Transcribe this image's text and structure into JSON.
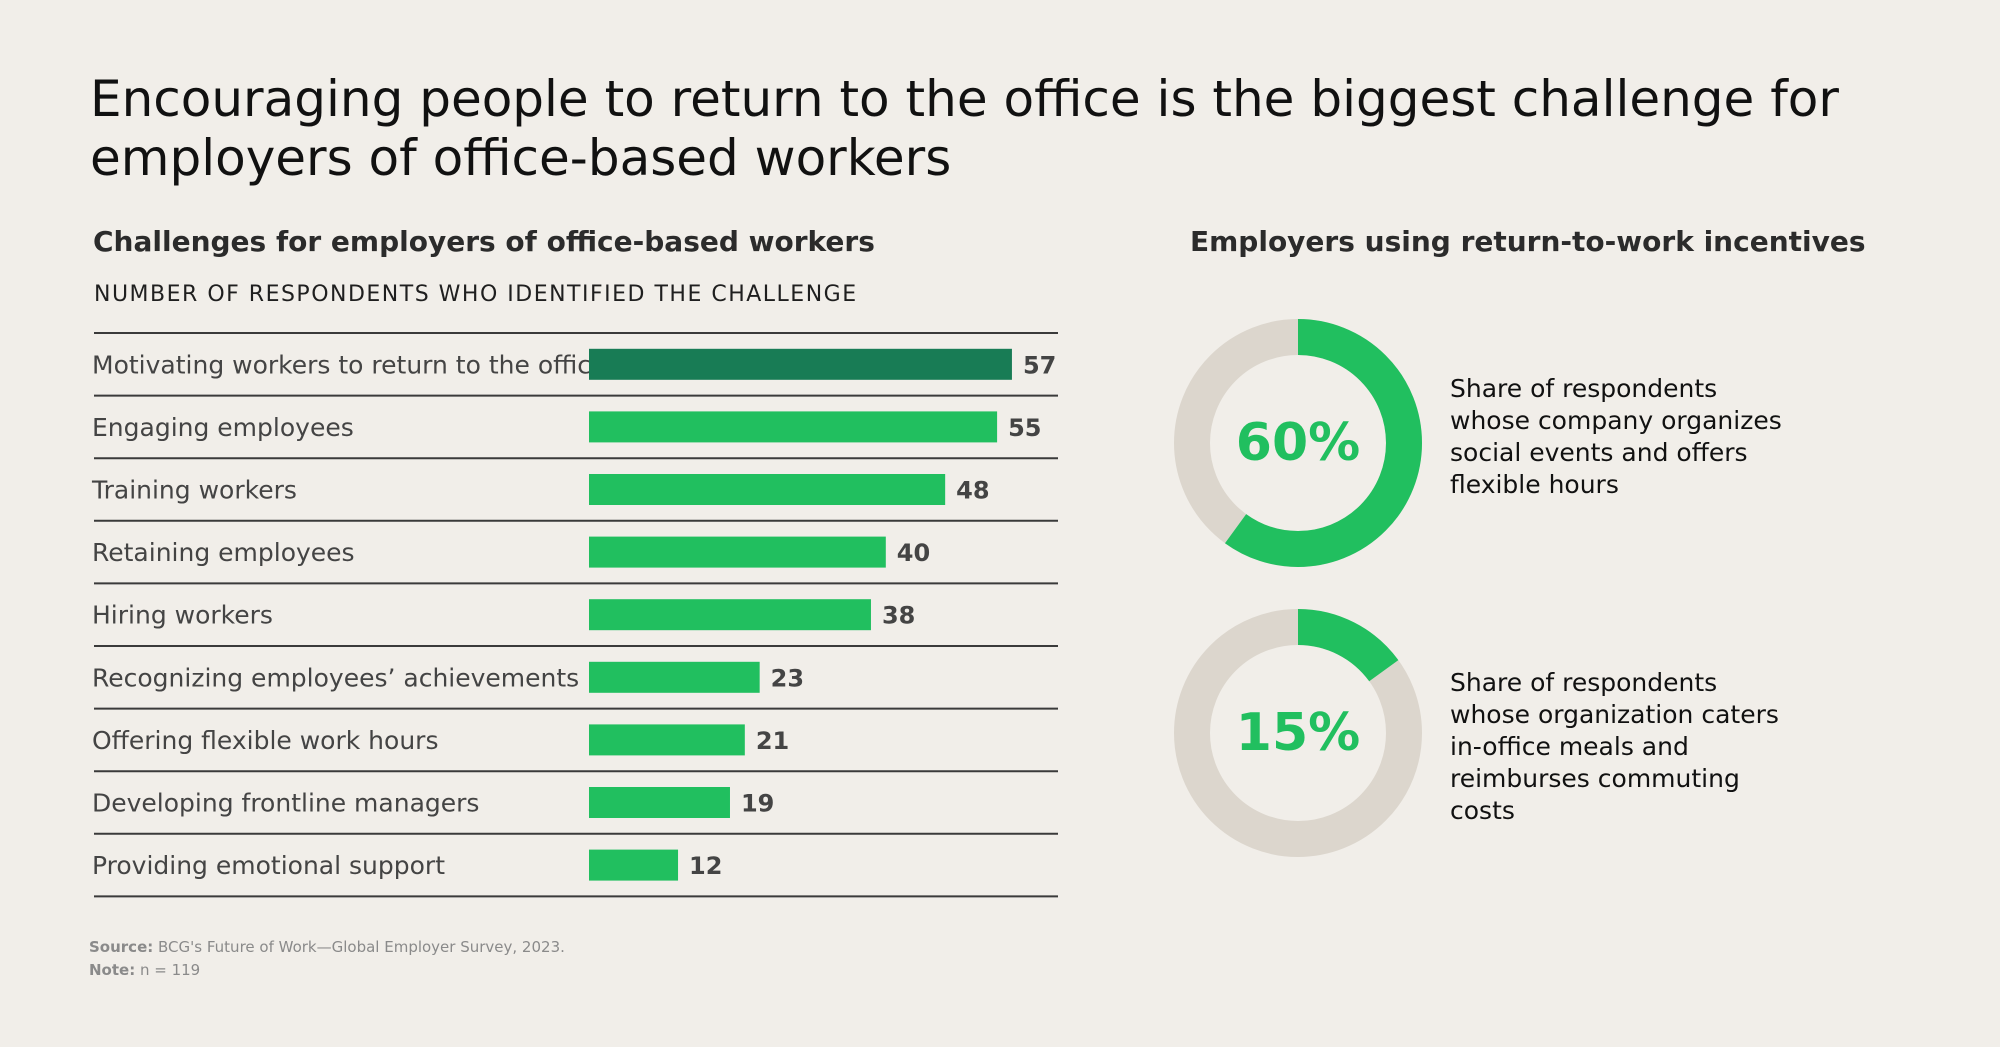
{
  "title": "Encouraging people to return to the office is the biggest challenge for employers of office-based workers",
  "left_subtitle": "Challenges for employers of office-based workers",
  "left_caption": "NUMBER OF RESPONDENTS WHO IDENTIFIED THE CHALLENGE",
  "right_subtitle": "Employers using return-to-work incentives",
  "colors": {
    "highlight": "#187c55",
    "bar": "#21bf5f",
    "track": "#dcd6cd",
    "rule": "#3a3a3a"
  },
  "chart_data": [
    {
      "type": "bar",
      "orientation": "horizontal",
      "title": "Challenges for employers of office-based workers",
      "xlabel": "NUMBER OF RESPONDENTS WHO IDENTIFIED THE CHALLENGE",
      "categories": [
        "Motivating workers to return to the office",
        "Engaging employees",
        "Training workers",
        "Retaining employees",
        "Hiring workers",
        "Recognizing employees’ achievements",
        "Offering flexible work hours",
        "Developing frontline managers",
        "Providing emotional support"
      ],
      "values": [
        57,
        55,
        48,
        40,
        38,
        23,
        21,
        19,
        12
      ],
      "highlighted_index": 0,
      "xlim": [
        0,
        60
      ],
      "grid": false
    },
    {
      "type": "pie",
      "variant": "donut",
      "title": "Employers using return-to-work incentives",
      "items": [
        {
          "label": "60%",
          "value": 60,
          "description": "Share of respondents whose company organizes social events and offers flexible hours"
        },
        {
          "label": "15%",
          "value": 15,
          "description": "Share of respondents whose organization caters in-office meals and reimburses commuting costs"
        }
      ]
    }
  ],
  "footer": {
    "source_label": "Source:",
    "source_text": "BCG's Future of Work—Global Employer Survey, 2023.",
    "note_label": "Note:",
    "note_text": "n = 119"
  }
}
